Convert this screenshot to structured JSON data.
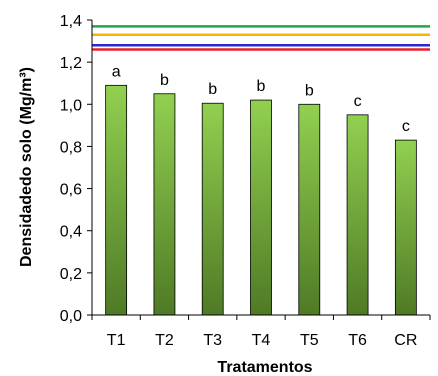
{
  "chart_data": {
    "type": "bar",
    "categories": [
      "T1",
      "T2",
      "T3",
      "T4",
      "T5",
      "T6",
      "CR"
    ],
    "values": [
      1.09,
      1.05,
      1.005,
      1.02,
      1.0,
      0.95,
      0.83
    ],
    "significance_letters": [
      "a",
      "b",
      "b",
      "b",
      "b",
      "c",
      "c"
    ],
    "xlabel": "Tratamentos",
    "ylabel": "Densidadedo solo (Mg/m³)",
    "ylim": [
      0,
      1.4
    ],
    "yticks": [
      "0,0",
      "0,2",
      "0,4",
      "0,6",
      "0,8",
      "1,0",
      "1,2",
      "1,4"
    ],
    "reference_lines": [
      {
        "value": 1.37,
        "color": "#22a84a"
      },
      {
        "value": 1.33,
        "color": "#f5b800"
      },
      {
        "value": 1.28,
        "color": "#2a2ad0"
      },
      {
        "value": 1.26,
        "color": "#e8202a"
      }
    ],
    "bar_color_top": "#92d050",
    "bar_color_bottom": "#4f7a26",
    "grid": false,
    "legend": "none"
  }
}
